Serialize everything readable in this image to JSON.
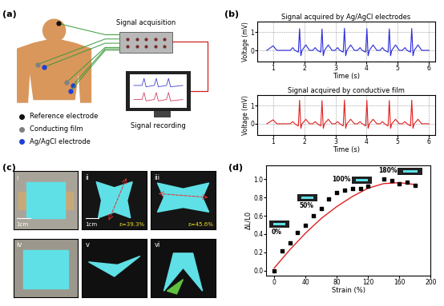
{
  "panel_labels": [
    "(a)",
    "(b)",
    "(c)",
    "(d)"
  ],
  "diagram": {
    "box_label": "Signal acquisition",
    "monitor_label": "Signal recording",
    "legend": [
      {
        "label": "Reference electrode",
        "color": "#111111"
      },
      {
        "label": "Conducting film",
        "color": "#808080"
      },
      {
        "label": "Ag/AgCl electrode",
        "color": "#1f3fd6"
      }
    ]
  },
  "chart_data": [
    {
      "type": "line",
      "title": "Signal acquired by Ag/AgCl electrodes",
      "xlabel": "Time (s)",
      "ylabel": "Voltage (mV)",
      "x": [
        0.8,
        1.0,
        1.12,
        1.55,
        1.63,
        1.7,
        1.81,
        1.85,
        1.89,
        1.93,
        2.05,
        2.17,
        2.27,
        2.35,
        2.42,
        2.53,
        2.57,
        2.61,
        2.65,
        2.77,
        2.89,
        2.99,
        3.07,
        3.14,
        3.25,
        3.29,
        3.33,
        3.37,
        3.49,
        3.61,
        3.71,
        3.79,
        3.86,
        3.97,
        4.01,
        4.05,
        4.09,
        4.21,
        4.33,
        4.43,
        4.51,
        4.58,
        4.69,
        4.73,
        4.77,
        4.81,
        4.93,
        5.05,
        5.15,
        5.23,
        5.3,
        5.41,
        5.45,
        5.49,
        5.53,
        5.65,
        5.77,
        6.0
      ],
      "values": [
        0,
        0.25,
        0,
        0,
        0.15,
        0,
        -0.1,
        1.2,
        -0.3,
        0,
        0.3,
        0,
        0,
        0.15,
        0,
        -0.1,
        1.18,
        -0.3,
        0,
        0.3,
        0,
        0,
        0.15,
        0,
        -0.1,
        1.22,
        -0.3,
        0,
        0.3,
        0,
        0,
        0.15,
        0,
        -0.1,
        1.2,
        -0.3,
        0,
        0.3,
        0,
        0,
        0.15,
        0,
        -0.1,
        1.19,
        -0.3,
        0,
        0.3,
        0,
        0,
        0.15,
        0,
        -0.1,
        1.21,
        -0.3,
        0,
        0.3,
        0,
        0
      ],
      "color": "#2a2adc",
      "xlim": [
        0.5,
        6.2
      ],
      "ylim": [
        -0.6,
        1.6
      ],
      "xticks": [
        1,
        2,
        3,
        4,
        5,
        6
      ],
      "yticks": [
        0,
        1
      ],
      "grid": true
    },
    {
      "type": "line",
      "title": "Signal acquired by conductive film",
      "xlabel": "Time (s)",
      "ylabel": "Voltage (mV)",
      "x": [
        0.8,
        1.0,
        1.12,
        1.55,
        1.63,
        1.7,
        1.81,
        1.85,
        1.89,
        1.93,
        2.05,
        2.17,
        2.27,
        2.35,
        2.42,
        2.53,
        2.57,
        2.61,
        2.65,
        2.77,
        2.89,
        2.99,
        3.07,
        3.14,
        3.25,
        3.29,
        3.33,
        3.37,
        3.49,
        3.61,
        3.71,
        3.79,
        3.86,
        3.97,
        4.01,
        4.05,
        4.09,
        4.21,
        4.33,
        4.43,
        4.51,
        4.58,
        4.69,
        4.73,
        4.77,
        4.81,
        4.93,
        5.05,
        5.15,
        5.23,
        5.3,
        5.41,
        5.45,
        5.49,
        5.53,
        5.65,
        5.77,
        6.0
      ],
      "values": [
        0,
        0.22,
        0,
        0,
        0.12,
        0,
        -0.12,
        1.3,
        -0.25,
        0,
        0.25,
        0,
        0,
        0.12,
        0,
        -0.12,
        1.28,
        -0.25,
        0,
        0.25,
        0,
        0,
        0.12,
        0,
        -0.12,
        1.32,
        -0.25,
        0,
        0.25,
        0,
        0,
        0.12,
        0,
        -0.12,
        1.3,
        -0.25,
        0,
        0.25,
        0,
        0,
        0.12,
        0,
        -0.12,
        1.29,
        -0.25,
        0,
        0.25,
        0,
        0,
        0.12,
        0,
        -0.12,
        1.31,
        -0.25,
        0,
        0.25,
        0,
        0
      ],
      "color": "#e02020",
      "xlim": [
        0.5,
        6.2
      ],
      "ylim": [
        -0.6,
        1.6
      ],
      "xticks": [
        1,
        2,
        3,
        4,
        5,
        6
      ],
      "yticks": [
        0,
        1
      ],
      "grid": true
    },
    {
      "type": "scatter",
      "xlabel": "Strain (%)",
      "ylabel": "ΔL/L0",
      "x": [
        0,
        10,
        20,
        30,
        40,
        50,
        60,
        70,
        80,
        90,
        100,
        110,
        120,
        140,
        150,
        160,
        170,
        180
      ],
      "values": [
        0,
        0.22,
        0.3,
        0.42,
        0.5,
        0.6,
        0.68,
        0.78,
        0.85,
        0.88,
        0.9,
        0.9,
        0.92,
        1.0,
        0.98,
        0.95,
        0.97,
        0.93
      ],
      "color": "#000000",
      "marker": "square",
      "fit": {
        "type": "line",
        "color": "#e02020",
        "x": [
          0,
          20,
          40,
          60,
          80,
          100,
          120,
          140,
          160,
          180
        ],
        "values": [
          0.03,
          0.23,
          0.41,
          0.57,
          0.7,
          0.81,
          0.9,
          0.95,
          0.96,
          0.94
        ]
      },
      "annotations": [
        "0%",
        "50%",
        "100%",
        "180%"
      ],
      "xlim": [
        -10,
        200
      ],
      "ylim": [
        -0.05,
        1.15
      ],
      "xticks": [
        0,
        40,
        80,
        120,
        160,
        200
      ],
      "yticks": [
        0.0,
        0.2,
        0.4,
        0.6,
        0.8,
        1.0
      ]
    }
  ],
  "photos": [
    {
      "label": "i",
      "scale": "1cm"
    },
    {
      "label": "ii",
      "scale": "1cm",
      "strain": "ε=39.3%"
    },
    {
      "label": "iii",
      "strain": "ε=45.6%"
    },
    {
      "label": "iv"
    },
    {
      "label": "v"
    },
    {
      "label": "vi"
    }
  ]
}
